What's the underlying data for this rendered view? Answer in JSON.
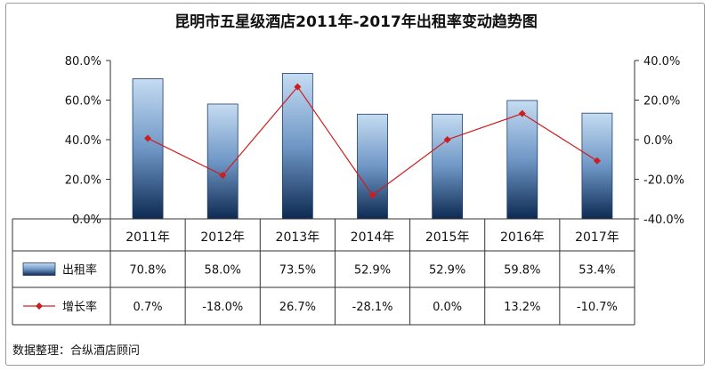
{
  "chart_data": {
    "type": "bar",
    "title": "昆明市五星级酒店2011年-2017年出租率变动趋势图",
    "categories": [
      "2011年",
      "2012年",
      "2013年",
      "2014年",
      "2015年",
      "2016年",
      "2017年"
    ],
    "series": [
      {
        "name": "出租率",
        "type": "bar",
        "axis": "left",
        "values": [
          70.8,
          58.0,
          73.5,
          52.9,
          52.9,
          59.8,
          53.4
        ],
        "labels": [
          "70.8%",
          "58.0%",
          "73.5%",
          "52.9%",
          "52.9%",
          "59.8%",
          "53.4%"
        ]
      },
      {
        "name": "增长率",
        "type": "line",
        "axis": "right",
        "values": [
          0.7,
          -18.0,
          26.7,
          -28.1,
          0.0,
          13.2,
          -10.7
        ],
        "labels": [
          "0.7%",
          "-18.0%",
          "26.7%",
          "-28.1%",
          "0.0%",
          "13.2%",
          "-10.7%"
        ]
      }
    ],
    "y_left": {
      "ylim": [
        0,
        80
      ],
      "ticks": [
        "0.0%",
        "20.0%",
        "40.0%",
        "60.0%",
        "80.0%"
      ]
    },
    "y_right": {
      "ylim": [
        -40,
        40
      ],
      "ticks": [
        "-40.0%",
        "-20.0%",
        "0.0%",
        "20.0%",
        "40.0%"
      ]
    },
    "data_table": true,
    "grid": false,
    "colors": {
      "bar_top": "#c5dcf2",
      "bar_bottom": "#0d2a52",
      "line": "#cc1e1e"
    }
  },
  "source_note": "数据整理：合纵酒店顾问"
}
